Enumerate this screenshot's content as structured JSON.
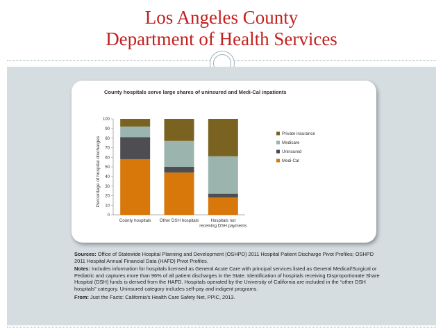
{
  "slide": {
    "title_line1": "Los Angeles County",
    "title_line2": "Department of Health Services"
  },
  "chart_data": {
    "type": "bar",
    "stacked": true,
    "title": "County hospitals serve large shares of uninsured and Medi-Cal inpatients",
    "ylabel": "Percentage of hospital discharges",
    "xlabel": "",
    "ylim": [
      0,
      100
    ],
    "yticks": [
      0,
      10,
      20,
      30,
      40,
      50,
      60,
      70,
      80,
      90,
      100
    ],
    "categories": [
      "County hospitals",
      "Other DSH hospitals",
      "Hospitals not receiving DSH payments"
    ],
    "series": [
      {
        "name": "Medi-Cal",
        "color": "#d9780a",
        "values": [
          58,
          44,
          18
        ]
      },
      {
        "name": "Uninsured",
        "color": "#4e4e52",
        "values": [
          23,
          6,
          4
        ]
      },
      {
        "name": "Medicare",
        "color": "#9bb5ae",
        "values": [
          11,
          27,
          39
        ]
      },
      {
        "name": "Private insurance",
        "color": "#7a6320",
        "values": [
          8,
          23,
          39
        ]
      }
    ],
    "legend_order": [
      "Private insurance",
      "Medicare",
      "Uninsured",
      "Medi-Cal"
    ],
    "legend_position": "right",
    "grid": false
  },
  "notes": {
    "sources_label": "Sources:",
    "sources_text": " Office of Statewide Hospital Planning and Development (OSHPD) 2011 Hospital Patient Discharge Pivot Profiles; OSHPD 2011 Hospital Annual Financial Data (HAFD) Pivot Profiles.",
    "notes_label": "Notes:",
    "notes_text": " Includes information for hospitals licensed as General Acute Care with principal services listed as General Medical/Surgical or Pediatric and captures more than 96% of all patient discharges in the State. Identification of hospitals receiving Disproportionate Share Hospital (DSH) funds is derived from the HAFD. Hospitals operated by the University of California are included in the “other DSH hospitals” category. Uninsured category includes self-pay and indigent programs.",
    "from_label": "From:",
    "from_text": " Just the Facts: California’s Health Care Safety Net, PPIC, 2013."
  }
}
